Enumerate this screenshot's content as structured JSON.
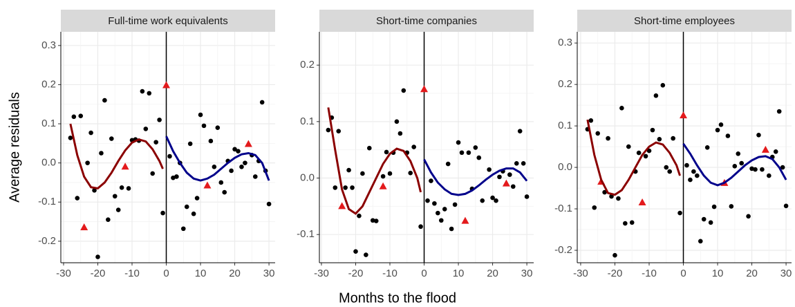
{
  "x_label": "Months to the flood",
  "y_label": "Average residuals",
  "chart_data": [
    {
      "type": "scatter",
      "title": "Full-time work equivalents",
      "xlim": [
        -30.8,
        31.8
      ],
      "ylim": [
        -0.255,
        0.335
      ],
      "xticks": [
        -30,
        -20,
        -10,
        {
          "value": 0,
          "label": "0"
        },
        10,
        20,
        30
      ],
      "yticks": [
        -0.2,
        -0.1,
        {
          "value": 0,
          "label": "0.0"
        },
        0.1,
        0.2,
        0.3
      ],
      "vline": 0,
      "grid": true,
      "series": [
        {
          "marker": "circle",
          "color": "#000000",
          "x": [
            -28,
            -27,
            -26,
            -25,
            -23,
            -22,
            -21,
            -20,
            -19,
            -18,
            -17,
            -16,
            -15,
            -14,
            -13,
            -11,
            -10,
            -9,
            -8,
            -7,
            -6,
            -5,
            -4,
            -3,
            -2,
            -1,
            1,
            2,
            3,
            4,
            5,
            6,
            7,
            8,
            9,
            10,
            11,
            13,
            14,
            15,
            16,
            17,
            18,
            19,
            20,
            21,
            22,
            23,
            25,
            26,
            27,
            28,
            29,
            30
          ],
          "values": [
            0.064,
            0.118,
            -0.09,
            0.12,
            0.0,
            0.077,
            -0.07,
            -0.24,
            0.025,
            0.16,
            -0.145,
            0.062,
            -0.085,
            -0.12,
            -0.063,
            -0.065,
            0.058,
            0.06,
            0.057,
            0.183,
            0.087,
            0.178,
            -0.027,
            0.053,
            0.11,
            -0.128,
            0.017,
            -0.038,
            -0.035,
            0.0,
            -0.168,
            -0.112,
            0.049,
            -0.13,
            -0.09,
            0.123,
            0.095,
            0.056,
            -0.01,
            0.09,
            -0.05,
            -0.075,
            0.005,
            -0.02,
            0.035,
            0.03,
            -0.01,
            0.0,
            0.02,
            -0.035,
            0.005,
            0.155,
            -0.02,
            -0.105
          ]
        },
        {
          "marker": "triangle",
          "color": "#e31a1c",
          "x": [
            -24,
            -12,
            0,
            12,
            24
          ],
          "values": [
            -0.165,
            -0.01,
            0.198,
            -0.058,
            0.048
          ]
        },
        {
          "marker": "line",
          "color": "#8b0000",
          "x": [
            -28,
            -26,
            -24,
            -22,
            -20,
            -18,
            -16,
            -14,
            -12,
            -10,
            -8,
            -6,
            -4,
            -2,
            -1
          ],
          "values": [
            0.1,
            0.02,
            -0.035,
            -0.062,
            -0.065,
            -0.05,
            -0.025,
            0.005,
            0.032,
            0.052,
            0.06,
            0.055,
            0.035,
            0.005,
            -0.015
          ]
        },
        {
          "marker": "line",
          "color": "#00008b",
          "x": [
            0,
            2,
            4,
            6,
            8,
            10,
            12,
            14,
            16,
            18,
            20,
            22,
            24,
            26,
            28,
            30
          ],
          "values": [
            0.068,
            0.03,
            0.0,
            -0.025,
            -0.04,
            -0.045,
            -0.04,
            -0.03,
            -0.015,
            0.0,
            0.013,
            0.022,
            0.025,
            0.02,
            0.0,
            -0.045
          ]
        }
      ]
    },
    {
      "type": "scatter",
      "title": "Short-time companies",
      "xlim": [
        -30.6,
        32.0
      ],
      "ylim": [
        -0.15,
        0.259
      ],
      "xticks": [
        -30,
        -20,
        -10,
        {
          "value": 0,
          "label": "0"
        },
        10,
        20,
        30
      ],
      "yticks": [
        -0.1,
        {
          "value": 0,
          "label": "0.0"
        },
        0.1,
        0.2
      ],
      "vline": 0,
      "grid": true,
      "series": [
        {
          "marker": "circle",
          "color": "#000000",
          "x": [
            -28,
            -27,
            -26,
            -25,
            -23,
            -22,
            -21,
            -20,
            -19,
            -18,
            -17,
            -16,
            -15,
            -14,
            -12,
            -11,
            -10,
            -9,
            -8,
            -7,
            -6,
            -5,
            -4,
            -3,
            -1,
            1,
            2,
            3,
            4,
            5,
            6,
            7,
            8,
            9,
            10,
            11,
            13,
            14,
            15,
            16,
            17,
            19,
            20,
            21,
            22,
            23,
            25,
            26,
            27,
            28,
            29,
            30
          ],
          "values": [
            0.085,
            0.107,
            -0.017,
            0.083,
            -0.017,
            0.014,
            -0.017,
            -0.13,
            -0.067,
            0.008,
            -0.136,
            0.053,
            -0.075,
            -0.076,
            0.003,
            0.046,
            0.008,
            0.045,
            0.1,
            0.079,
            0.155,
            0.045,
            0.009,
            0.055,
            -0.086,
            -0.04,
            -0.005,
            -0.045,
            -0.062,
            -0.075,
            -0.055,
            0.025,
            -0.09,
            -0.047,
            0.063,
            0.045,
            0.045,
            -0.019,
            0.054,
            0.036,
            -0.04,
            0.015,
            -0.035,
            -0.04,
            0.002,
            0.012,
            0.006,
            -0.015,
            0.026,
            0.083,
            0.026,
            -0.033
          ]
        },
        {
          "marker": "triangle",
          "color": "#e31a1c",
          "x": [
            -24,
            -12,
            0,
            12,
            24
          ],
          "values": [
            -0.05,
            -0.015,
            0.157,
            -0.076,
            -0.01
          ]
        },
        {
          "marker": "line",
          "color": "#8b0000",
          "x": [
            -28,
            -26,
            -24,
            -22,
            -20,
            -18,
            -16,
            -14,
            -12,
            -10,
            -8,
            -6,
            -4,
            -2,
            -1
          ],
          "values": [
            0.125,
            0.05,
            -0.02,
            -0.055,
            -0.063,
            -0.05,
            -0.025,
            0.0,
            0.025,
            0.043,
            0.052,
            0.048,
            0.03,
            0.0,
            -0.025
          ]
        },
        {
          "marker": "line",
          "color": "#00008b",
          "x": [
            0,
            2,
            4,
            6,
            8,
            10,
            12,
            14,
            16,
            18,
            20,
            22,
            24,
            26,
            28,
            30
          ],
          "values": [
            0.033,
            0.01,
            -0.008,
            -0.02,
            -0.028,
            -0.03,
            -0.028,
            -0.022,
            -0.013,
            -0.003,
            0.006,
            0.013,
            0.017,
            0.017,
            0.01,
            -0.005
          ]
        }
      ]
    },
    {
      "type": "scatter",
      "title": "Short-time employees",
      "xlim": [
        -31.0,
        31.6
      ],
      "ylim": [
        -0.23,
        0.327
      ],
      "xticks": [
        -30,
        -20,
        -10,
        {
          "value": 0,
          "label": "0"
        },
        10,
        20,
        30
      ],
      "yticks": [
        -0.2,
        -0.1,
        {
          "value": 0,
          "label": "0.0"
        },
        0.1,
        0.2,
        0.3
      ],
      "vline": 0,
      "grid": true,
      "series": [
        {
          "marker": "circle",
          "color": "#000000",
          "x": [
            -28,
            -27,
            -26,
            -25,
            -23,
            -22,
            -21,
            -20,
            -19,
            -18,
            -17,
            -16,
            -15,
            -14,
            -13,
            -11,
            -10,
            -9,
            -8,
            -7,
            -6,
            -5,
            -4,
            -3,
            -1,
            1,
            2,
            3,
            4,
            5,
            6,
            7,
            8,
            9,
            10,
            11,
            13,
            14,
            15,
            16,
            17,
            19,
            20,
            21,
            22,
            23,
            25,
            26,
            27,
            28,
            29,
            30
          ],
          "values": [
            0.092,
            0.113,
            -0.097,
            0.082,
            -0.06,
            0.07,
            -0.07,
            -0.212,
            -0.075,
            0.143,
            -0.135,
            0.05,
            -0.133,
            -0.01,
            0.035,
            0.027,
            0.04,
            0.09,
            0.173,
            0.068,
            0.198,
            0.0,
            -0.01,
            0.07,
            -0.11,
            0.005,
            -0.03,
            -0.01,
            -0.02,
            -0.178,
            -0.125,
            0.048,
            -0.133,
            -0.095,
            0.09,
            0.103,
            0.076,
            -0.094,
            0.003,
            0.033,
            0.01,
            -0.118,
            -0.003,
            -0.005,
            0.078,
            -0.005,
            -0.02,
            0.025,
            0.038,
            0.135,
            0.0,
            -0.093
          ]
        },
        {
          "marker": "triangle",
          "color": "#e31a1c",
          "x": [
            -24,
            -12,
            0,
            12,
            24
          ],
          "values": [
            -0.035,
            -0.085,
            0.125,
            -0.038,
            0.042
          ]
        },
        {
          "marker": "line",
          "color": "#8b0000",
          "x": [
            -28,
            -26,
            -24,
            -22,
            -20,
            -18,
            -16,
            -14,
            -12,
            -10,
            -8,
            -6,
            -4,
            -2,
            -1
          ],
          "values": [
            0.115,
            0.03,
            -0.03,
            -0.062,
            -0.066,
            -0.055,
            -0.03,
            0.0,
            0.03,
            0.05,
            0.06,
            0.055,
            0.035,
            0.005,
            -0.02
          ]
        },
        {
          "marker": "line",
          "color": "#00008b",
          "x": [
            0,
            2,
            4,
            6,
            8,
            10,
            12,
            14,
            16,
            18,
            20,
            22,
            24,
            26,
            28,
            30
          ],
          "values": [
            0.057,
            0.033,
            0.005,
            -0.02,
            -0.037,
            -0.043,
            -0.037,
            -0.025,
            -0.01,
            0.005,
            0.017,
            0.025,
            0.027,
            0.02,
            0.0,
            -0.03
          ]
        }
      ]
    }
  ]
}
